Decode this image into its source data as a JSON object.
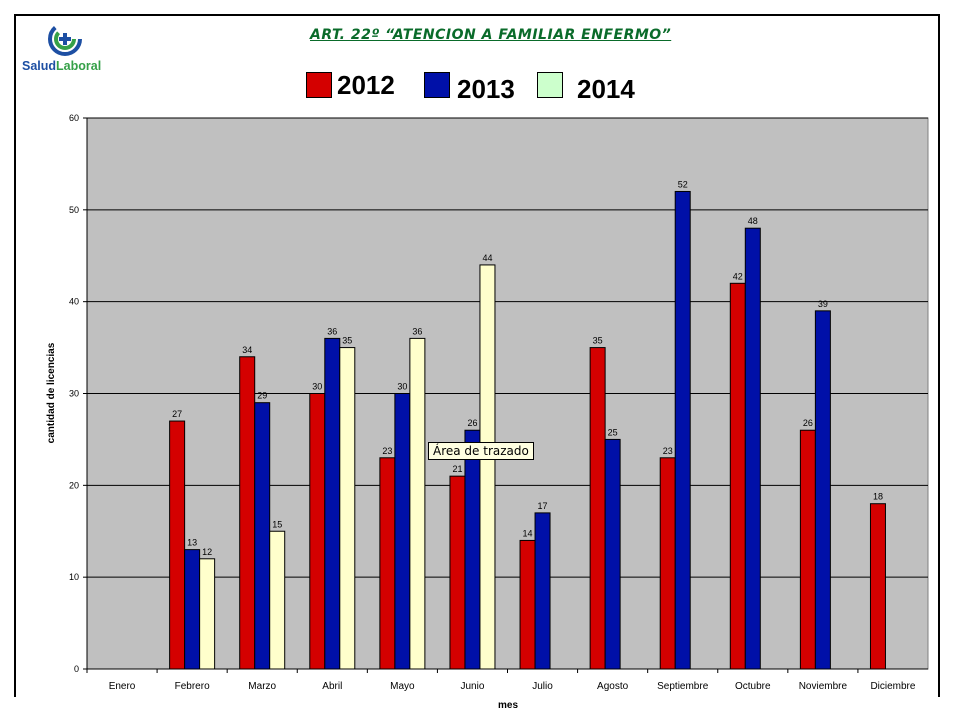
{
  "slide": {
    "title": "ART. 22º “ATENCION A FAMILIAR ENFERMO”",
    "logo_text_part1": "Salud",
    "logo_text_part2": "Laboral",
    "tooltip": "Área de trazado"
  },
  "colors": {
    "s2012": "#d40000",
    "s2013": "#0010a8",
    "s2014": "#ffffcc",
    "plot_bg": "#c0c0c0",
    "title_green": "#0a6b2a"
  },
  "chart_data": {
    "type": "bar",
    "title": "",
    "xlabel": "mes",
    "ylabel": "cantidad de licencias",
    "ylim": [
      0,
      60
    ],
    "yticks": [
      0,
      10,
      20,
      30,
      40,
      50,
      60
    ],
    "grid": true,
    "legend_position": "top",
    "categories": [
      "Enero",
      "Febrero",
      "Marzo",
      "Abril",
      "Mayo",
      "Junio",
      "Julio",
      "Agosto",
      "Septiembre",
      "Octubre",
      "Noviembre",
      "Diciembre"
    ],
    "series": [
      {
        "name": "2012",
        "color": "#d40000",
        "values": [
          null,
          27,
          34,
          30,
          23,
          21,
          14,
          35,
          23,
          42,
          26,
          18
        ]
      },
      {
        "name": "2013",
        "color": "#0010a8",
        "values": [
          null,
          13,
          29,
          36,
          30,
          26,
          17,
          25,
          52,
          48,
          39,
          null
        ]
      },
      {
        "name": "2014",
        "color": "#ffffcc",
        "values": [
          null,
          12,
          15,
          35,
          36,
          44,
          null,
          null,
          null,
          null,
          null,
          null
        ]
      }
    ]
  }
}
